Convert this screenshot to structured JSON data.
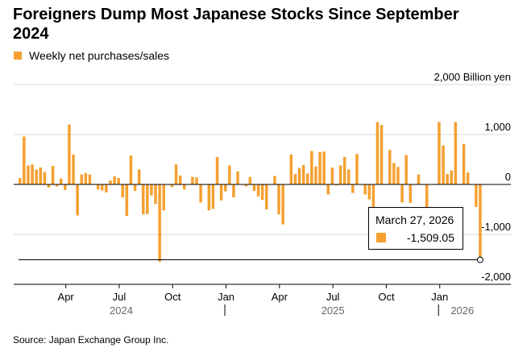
{
  "header": {
    "title": "Foreigners Dump Most Japanese Stocks Since September 2024"
  },
  "legend": {
    "label": "Weekly net purchases/sales",
    "color": "#f5a030"
  },
  "tooltip": {
    "date": "March 27, 2026",
    "value": "-1,509.05"
  },
  "footer": {
    "source": "Source: Japan Exchange Group Inc."
  },
  "chart_data": {
    "type": "bar",
    "title": "Foreigners Dump Most Japanese Stocks Since September 2024",
    "series": [
      {
        "name": "Weekly net purchases/sales",
        "color": "#f5a030",
        "values": [
          130,
          960,
          380,
          400,
          300,
          340,
          250,
          -60,
          370,
          -40,
          120,
          -110,
          1200,
          600,
          -620,
          200,
          230,
          200,
          0,
          -100,
          -120,
          -160,
          80,
          160,
          130,
          -260,
          -630,
          580,
          -130,
          300,
          -600,
          -590,
          -220,
          -390,
          -1550,
          -520,
          0,
          -50,
          400,
          180,
          -100,
          0,
          150,
          140,
          -360,
          0,
          -520,
          -490,
          550,
          -320,
          -140,
          380,
          -260,
          260,
          0,
          -40,
          150,
          -130,
          -240,
          -310,
          -500,
          0,
          170,
          -600,
          -800,
          0,
          600,
          210,
          330,
          390,
          220,
          670,
          360,
          650,
          660,
          -200,
          340,
          -20,
          380,
          550,
          300,
          -170,
          610,
          0,
          -200,
          -300,
          -450,
          1250,
          1190,
          0,
          690,
          430,
          350,
          -360,
          590,
          -370,
          0,
          200,
          0,
          -500,
          0,
          0,
          1250,
          780,
          210,
          280,
          1250,
          0,
          810,
          240,
          0,
          -450,
          -1509.05
        ]
      }
    ],
    "yaxis": {
      "unit_label": "2,000 Billion yen",
      "ticks": [
        2000,
        1000,
        0,
        -1000,
        -2000
      ],
      "tick_labels": [
        "2,000 Billion yen",
        "1,000",
        "0",
        "-1,000",
        "-2,000"
      ],
      "ylim": [
        -2000,
        2000
      ],
      "position": "right"
    },
    "xaxis": {
      "month_ticks": [
        {
          "label": "Apr",
          "week": 11.5
        },
        {
          "label": "Jul",
          "week": 24.5
        },
        {
          "label": "Oct",
          "week": 37.5
        },
        {
          "label": "Jan",
          "week": 50.5
        },
        {
          "label": "Apr",
          "week": 63.5
        },
        {
          "label": "Jul",
          "week": 76.5
        },
        {
          "label": "Oct",
          "week": 89.5
        },
        {
          "label": "Jan",
          "week": 102.5
        }
      ],
      "year_labels": [
        {
          "label": "2024",
          "week": 25
        },
        {
          "label": "2025",
          "week": 76.5
        },
        {
          "label": "2026",
          "week": 108
        }
      ],
      "year_dividers": [
        50.2,
        102.2
      ]
    },
    "reference_line": {
      "value": -1509.05,
      "label": "March 27, 2026"
    },
    "grid": true,
    "legend_position": "top-left"
  }
}
